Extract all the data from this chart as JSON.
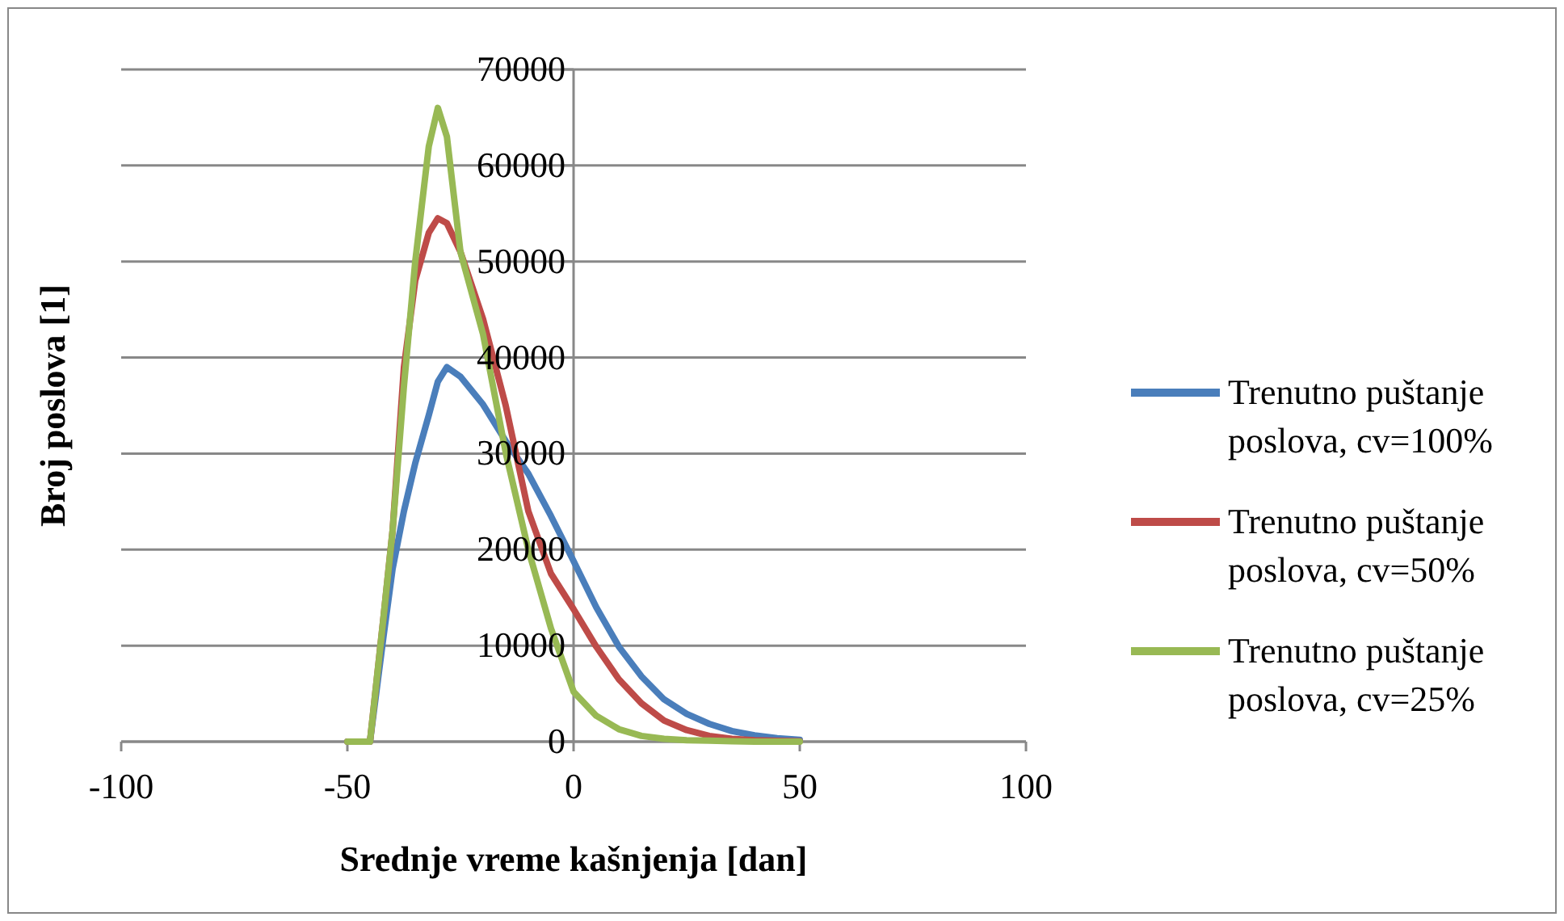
{
  "chart_data": {
    "type": "line",
    "xlabel": "Srednje vreme kašnjenja [dan]",
    "ylabel": "Broj poslova [1]",
    "x": [
      -50,
      -45,
      -42,
      -40,
      -37.5,
      -35,
      -32,
      -30,
      -28,
      -25,
      -20,
      -15,
      -10,
      -5,
      0,
      5,
      10,
      15,
      20,
      25,
      30,
      35,
      40,
      45,
      50
    ],
    "series": [
      {
        "name": "Trenutno puštanje poslova, cv=100%",
        "color": "#4a7ebb",
        "values": [
          0,
          0,
          11000,
          18000,
          24000,
          29000,
          34000,
          37500,
          39000,
          38000,
          35100,
          31300,
          27900,
          23500,
          18800,
          14000,
          9900,
          6800,
          4400,
          2900,
          1850,
          1100,
          650,
          350,
          200
        ]
      },
      {
        "name": "Trenutno puštanje poslova, cv=50%",
        "color": "#be4b48",
        "values": [
          0,
          0,
          13000,
          22000,
          39000,
          48000,
          53000,
          54500,
          54000,
          51000,
          44000,
          35000,
          24000,
          17500,
          13800,
          9900,
          6500,
          4000,
          2200,
          1200,
          600,
          300,
          150,
          80,
          50
        ]
      },
      {
        "name": "Trenutno puštanje poslova, cv=25%",
        "color": "#98b954",
        "values": [
          0,
          0,
          13000,
          22000,
          37000,
          50000,
          62000,
          66000,
          63000,
          51000,
          42400,
          30100,
          20000,
          11800,
          5200,
          2700,
          1300,
          600,
          300,
          150,
          100,
          50,
          0,
          0,
          0
        ]
      }
    ],
    "xlim": [
      -100,
      100
    ],
    "xticks": [
      -100,
      -50,
      0,
      50,
      100
    ],
    "ylim": [
      0,
      70000
    ],
    "yticks": [
      0,
      10000,
      20000,
      30000,
      40000,
      50000,
      60000,
      70000
    ],
    "grid": "y",
    "legend": "right",
    "marker": "none",
    "line_style": "solid"
  }
}
